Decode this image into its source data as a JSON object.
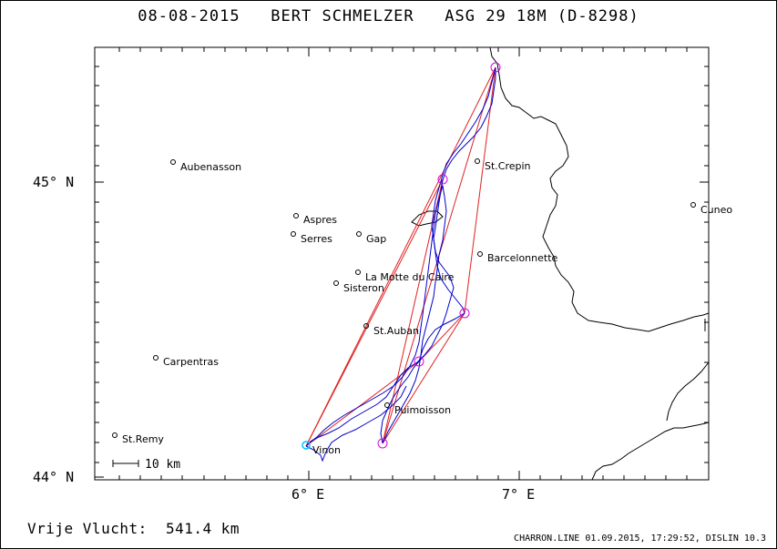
{
  "title": "08-08-2015   BERT SCHMELZER   ASG 29 18M (D-8298)",
  "axes": {
    "lon_labels": [
      "6° E",
      "7° E"
    ],
    "lat_labels": [
      "45° N",
      "44° N"
    ]
  },
  "scale_bar": {
    "label": "10 km"
  },
  "places": [
    {
      "name": "Aubenasson"
    },
    {
      "name": "Aspres"
    },
    {
      "name": "Serres"
    },
    {
      "name": "Gap"
    },
    {
      "name": "La Motte du Caire"
    },
    {
      "name": "Sisteron"
    },
    {
      "name": "St.Auban"
    },
    {
      "name": "Carpentras"
    },
    {
      "name": "Puimoisson"
    },
    {
      "name": "St.Remy"
    },
    {
      "name": "Vinon"
    },
    {
      "name": "St.Crepin"
    },
    {
      "name": "Barcelonnette"
    },
    {
      "name": "Cuneo"
    }
  ],
  "footer": {
    "distance": "Vrije Vlucht:  541.4 km",
    "meta": "CHARRON.LINE 01.09.2015, 17:29:52, DISLIN 10.3"
  },
  "colors": {
    "track": "#0000cc",
    "task": "#e02020",
    "turnpoint": "#e000e0",
    "border": "#000000",
    "start": "#00c0ff"
  }
}
